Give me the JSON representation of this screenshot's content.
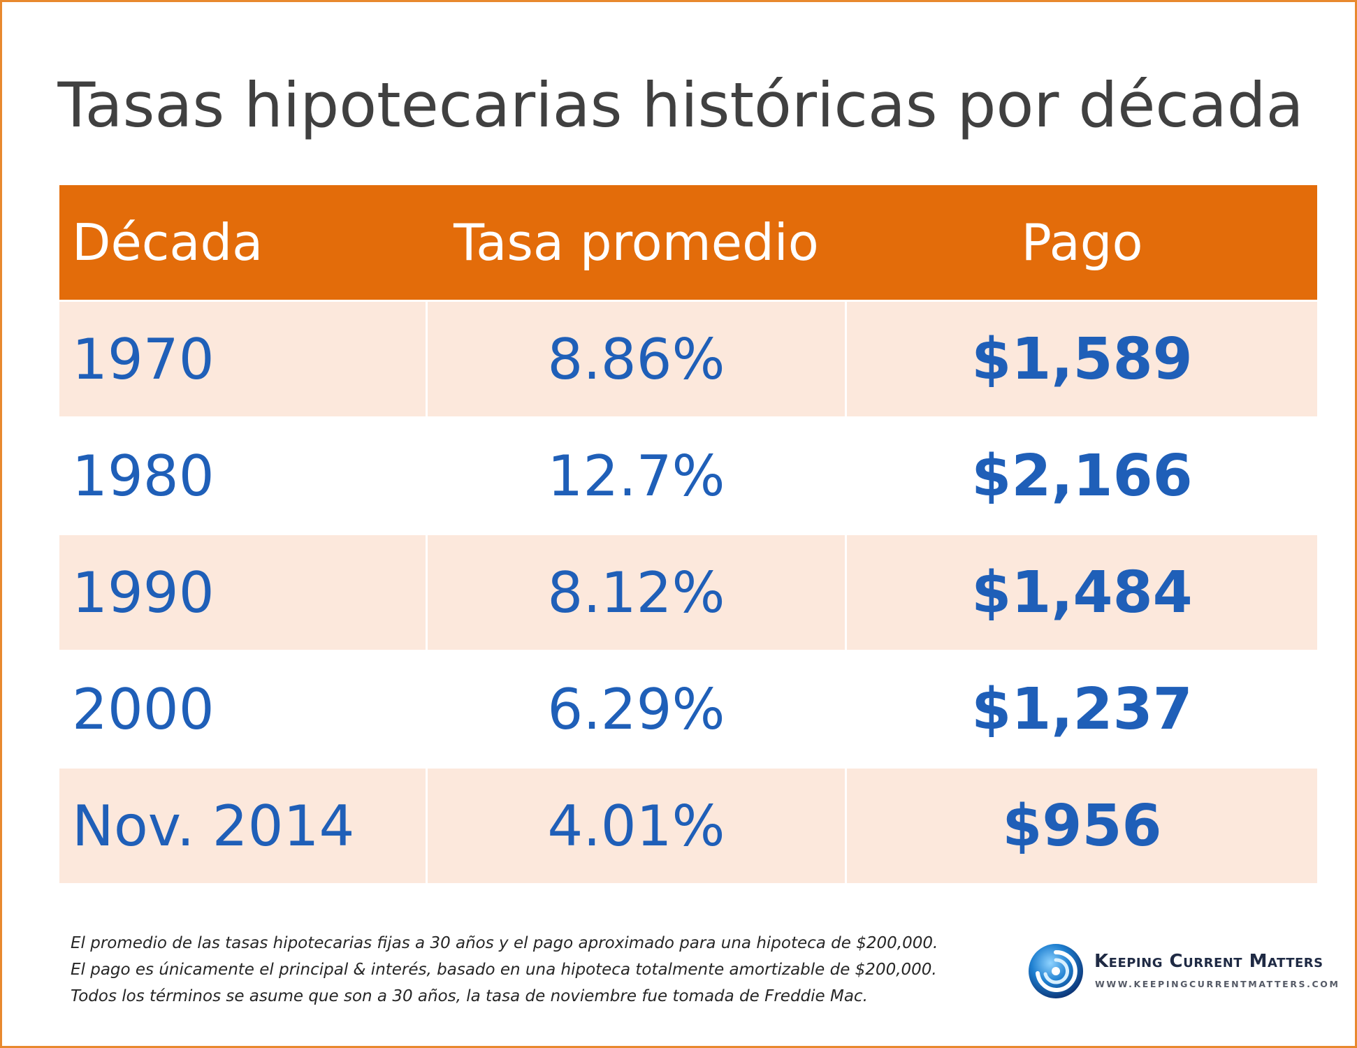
{
  "title": "Tasas hipotecarias históricas por década",
  "chart_data": {
    "type": "table",
    "title": "Tasas hipotecarias históricas por década",
    "columns": [
      "Década",
      "Tasa promedio",
      "Pago"
    ],
    "rows": [
      {
        "decade": "1970",
        "rate": "8.86%",
        "payment": "$1,589"
      },
      {
        "decade": "1980",
        "rate": "12.7%",
        "payment": "$2,166"
      },
      {
        "decade": "1990",
        "rate": "8.12%",
        "payment": "$1,484"
      },
      {
        "decade": "2000",
        "rate": "6.29%",
        "payment": "$1,237"
      },
      {
        "decade": "Nov. 2014",
        "rate": "4.01%",
        "payment": "$956"
      }
    ],
    "rate_values": [
      8.86,
      12.7,
      8.12,
      6.29,
      4.01
    ],
    "payment_values": [
      1589,
      2166,
      1484,
      1237,
      956
    ]
  },
  "colors": {
    "header_bg": "#e36c0a",
    "shaded_row": "#fce8dc",
    "value_text": "#1f5fb8",
    "border": "#e8892e"
  },
  "footnotes": [
    "El promedio de las tasas hipotecarias fijas a 30 años y el pago aproximado para una hipoteca de $200,000.",
    "El pago es únicamente el principal & interés, basado en una hipoteca totalmente amortizable de $200,000.",
    "Todos los términos se asume que son a 30 años, la tasa de noviembre fue tomada de Freddie Mac."
  ],
  "logo": {
    "name": "Keeping Current Matters",
    "url": "WWW.KEEPINGCURRENTMATTERS.COM",
    "icon": "swirl-logo-icon"
  }
}
